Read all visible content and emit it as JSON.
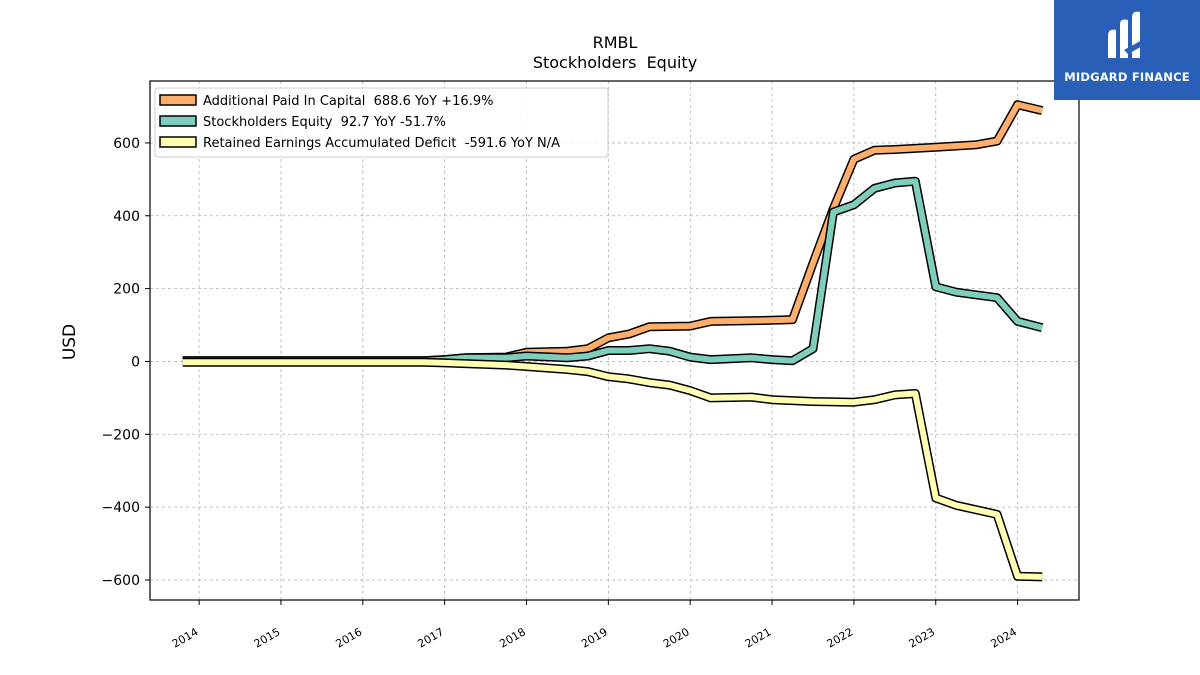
{
  "brand": {
    "name": "MIDGARD FINANCE",
    "bg_color": "#2a5fb8",
    "icon": "midgard-m-logo-icon"
  },
  "chart_data": {
    "type": "line",
    "title": "RMBL",
    "subtitle": "Stockholders  Equity",
    "xlabel": "",
    "ylabel": "USD",
    "xlim": [
      2013.4,
      2024.75
    ],
    "ylim": [
      -655,
      770
    ],
    "x_ticks": [
      2014,
      2015,
      2016,
      2017,
      2018,
      2019,
      2020,
      2021,
      2022,
      2023,
      2024
    ],
    "x_tick_labels": [
      "2014",
      "2015",
      "2016",
      "2017",
      "2018",
      "2019",
      "2020",
      "2021",
      "2022",
      "2023",
      "2024"
    ],
    "y_ticks": [
      -600,
      -400,
      -200,
      0,
      200,
      400,
      600
    ],
    "y_tick_labels": [
      "−600",
      "−400",
      "−200",
      "0",
      "200",
      "400",
      "600"
    ],
    "grid": true,
    "legend_position": "top-left",
    "series": [
      {
        "name": "Additional Paid In Capital  688.6 YoY +16.9%",
        "color": "#fdae6b",
        "points": [
          [
            2013.8,
            2
          ],
          [
            2014.0,
            2
          ],
          [
            2015.0,
            2
          ],
          [
            2016.0,
            2
          ],
          [
            2016.75,
            2
          ],
          [
            2017.0,
            5
          ],
          [
            2017.25,
            10
          ],
          [
            2017.75,
            12
          ],
          [
            2018.0,
            25
          ],
          [
            2018.5,
            28
          ],
          [
            2018.75,
            35
          ],
          [
            2019.0,
            65
          ],
          [
            2019.25,
            75
          ],
          [
            2019.5,
            95
          ],
          [
            2020.0,
            97
          ],
          [
            2020.25,
            110
          ],
          [
            2021.0,
            113
          ],
          [
            2021.25,
            115
          ],
          [
            2021.5,
            270
          ],
          [
            2021.75,
            420
          ],
          [
            2022.0,
            555
          ],
          [
            2022.25,
            580
          ],
          [
            2022.5,
            582
          ],
          [
            2023.0,
            588
          ],
          [
            2023.5,
            595
          ],
          [
            2023.75,
            605
          ],
          [
            2024.0,
            705
          ],
          [
            2024.3,
            688.6
          ]
        ]
      },
      {
        "name": "Stockholders Equity  92.7 YoY -51.7%",
        "color": "#7fcdbb",
        "points": [
          [
            2013.8,
            2
          ],
          [
            2014.0,
            2
          ],
          [
            2015.0,
            2
          ],
          [
            2016.0,
            2
          ],
          [
            2016.75,
            2
          ],
          [
            2017.0,
            5
          ],
          [
            2017.25,
            10
          ],
          [
            2017.75,
            10
          ],
          [
            2018.0,
            15
          ],
          [
            2018.5,
            10
          ],
          [
            2018.75,
            15
          ],
          [
            2019.0,
            30
          ],
          [
            2019.25,
            30
          ],
          [
            2019.5,
            35
          ],
          [
            2019.75,
            28
          ],
          [
            2020.0,
            12
          ],
          [
            2020.25,
            5
          ],
          [
            2020.75,
            10
          ],
          [
            2021.0,
            5
          ],
          [
            2021.25,
            2
          ],
          [
            2021.5,
            35
          ],
          [
            2021.75,
            410
          ],
          [
            2022.0,
            430
          ],
          [
            2022.25,
            475
          ],
          [
            2022.5,
            490
          ],
          [
            2022.75,
            495
          ],
          [
            2023.0,
            205
          ],
          [
            2023.25,
            190
          ],
          [
            2023.75,
            175
          ],
          [
            2024.0,
            110
          ],
          [
            2024.3,
            92.7
          ]
        ]
      },
      {
        "name": "Retained Earnings Accumulated Deficit  -591.6 YoY N/A",
        "color": "#ffffb2",
        "points": [
          [
            2013.8,
            -2
          ],
          [
            2014.0,
            -2
          ],
          [
            2015.0,
            -2
          ],
          [
            2016.0,
            -2
          ],
          [
            2016.75,
            -2
          ],
          [
            2017.0,
            -4
          ],
          [
            2017.25,
            -6
          ],
          [
            2017.75,
            -10
          ],
          [
            2018.0,
            -14
          ],
          [
            2018.5,
            -22
          ],
          [
            2018.75,
            -28
          ],
          [
            2019.0,
            -42
          ],
          [
            2019.25,
            -48
          ],
          [
            2019.5,
            -58
          ],
          [
            2019.75,
            -65
          ],
          [
            2020.0,
            -80
          ],
          [
            2020.25,
            -100
          ],
          [
            2020.75,
            -98
          ],
          [
            2021.0,
            -105
          ],
          [
            2021.5,
            -110
          ],
          [
            2022.0,
            -112
          ],
          [
            2022.25,
            -105
          ],
          [
            2022.5,
            -92
          ],
          [
            2022.75,
            -88
          ],
          [
            2023.0,
            -375
          ],
          [
            2023.25,
            -395
          ],
          [
            2023.75,
            -420
          ],
          [
            2024.0,
            -590
          ],
          [
            2024.3,
            -591.6
          ]
        ]
      }
    ]
  }
}
